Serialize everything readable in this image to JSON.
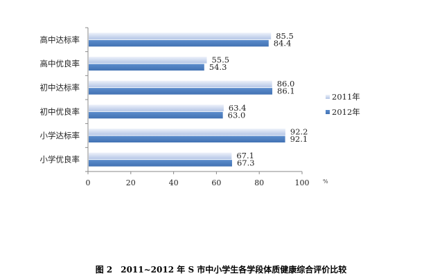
{
  "chart_data": {
    "type": "bar",
    "orientation": "horizontal",
    "categories": [
      "高中达标率",
      "高中优良率",
      "初中达标率",
      "初中优良率",
      "小学达标率",
      "小学优良率"
    ],
    "series": [
      {
        "name": "2011年",
        "values": [
          85.5,
          55.5,
          86.0,
          63.4,
          92.2,
          67.1
        ],
        "color": "#c9d6ec"
      },
      {
        "name": "2012年",
        "values": [
          84.4,
          54.3,
          86.1,
          63.0,
          92.1,
          67.3
        ],
        "color": "#4f7fbe"
      }
    ],
    "data_labels": [
      [
        "85.5",
        "55.5",
        "86.0",
        "63.4",
        "92.2",
        "67.1"
      ],
      [
        "84.4",
        "54.3",
        "86.1",
        "63.0",
        "92.1",
        "67.3"
      ]
    ],
    "xlim": [
      0,
      100
    ],
    "xticks": [
      "0",
      "20",
      "40",
      "60",
      "80",
      "100"
    ],
    "xunit": "%",
    "grid": false,
    "legend": "right",
    "caption": "图 2　2011~2012 年 S 市中小学生各学段体质健康综合评价比较"
  }
}
